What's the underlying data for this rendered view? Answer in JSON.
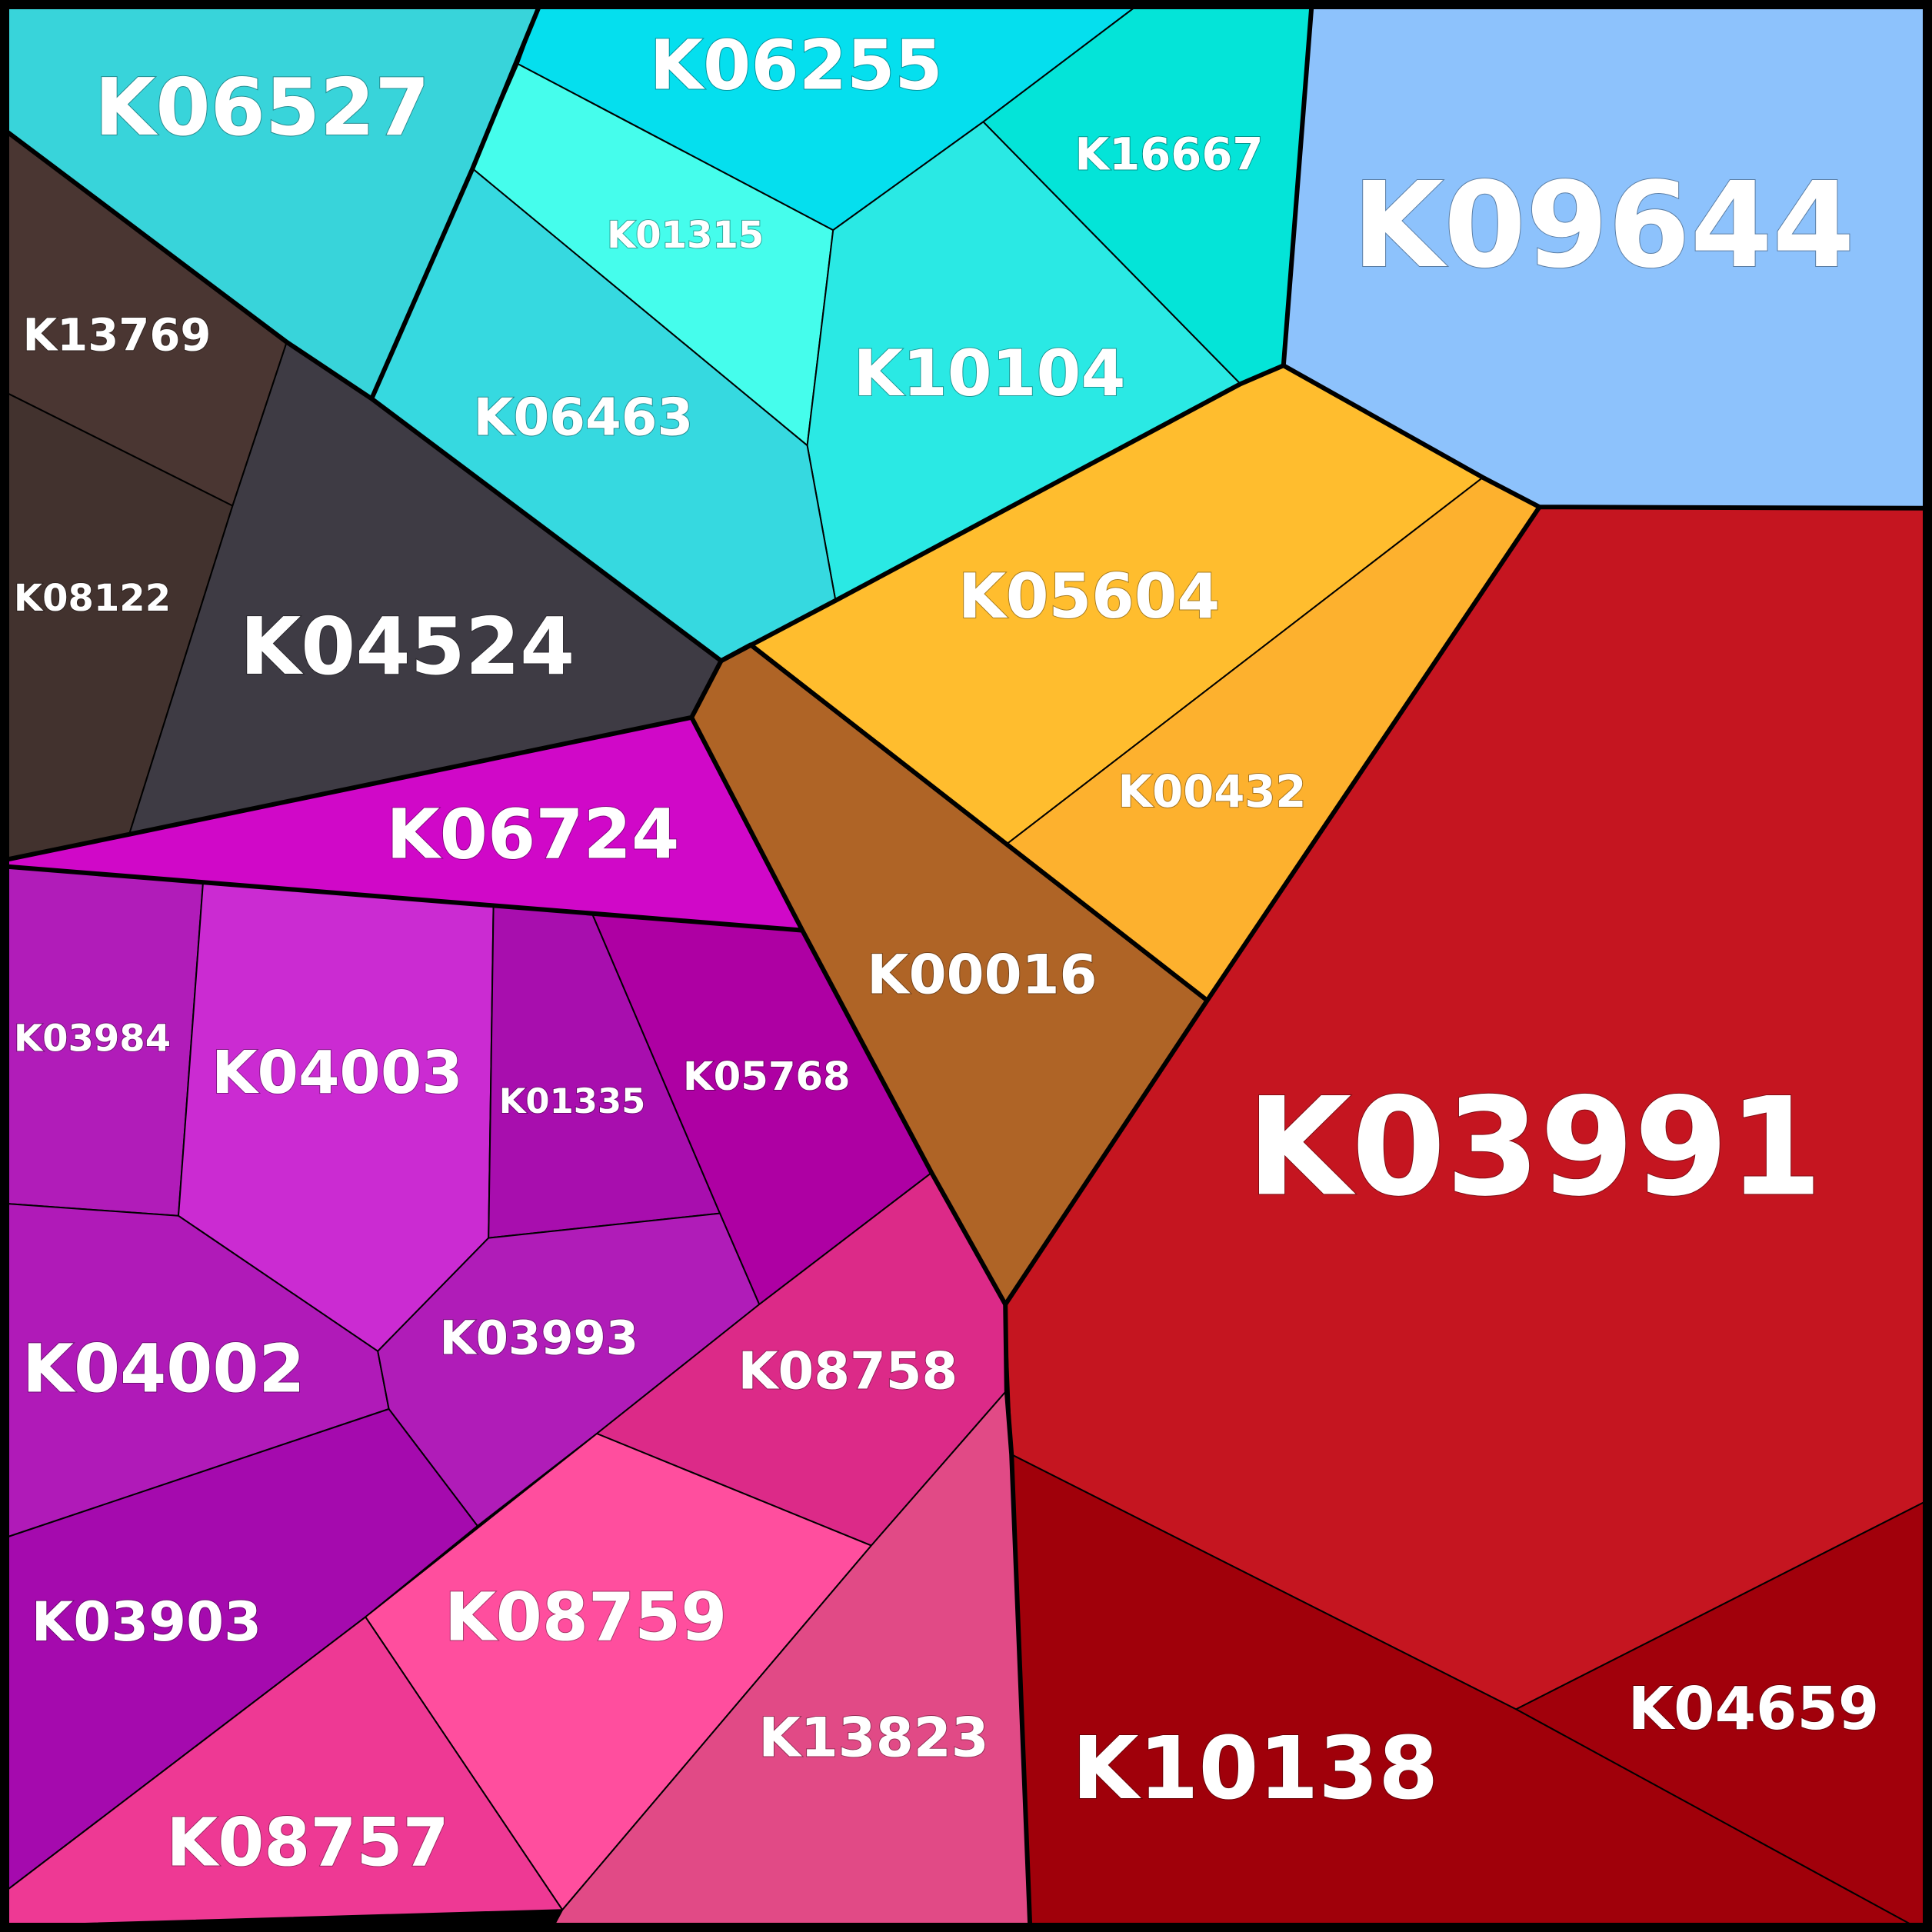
{
  "cells": [
    {
      "id": "K06527",
      "color": "#38d4da"
    },
    {
      "id": "K06255",
      "color": "#05dfee"
    },
    {
      "id": "K16667",
      "color": "#04e4d8"
    },
    {
      "id": "K09644",
      "color": "#8dc2fc"
    },
    {
      "id": "K01315",
      "color": "#45fdec"
    },
    {
      "id": "K10104",
      "color": "#2ae9e4"
    },
    {
      "id": "K06463",
      "color": "#36d9e0"
    },
    {
      "id": "K13769",
      "color": "#4a3632"
    },
    {
      "id": "K08122",
      "color": "#42322e"
    },
    {
      "id": "K04524",
      "color": "#3e3b44"
    },
    {
      "id": "K05604",
      "color": "#ffbd2e"
    },
    {
      "id": "K00432",
      "color": "#fdb12e"
    },
    {
      "id": "K00016",
      "color": "#af6426"
    },
    {
      "id": "K06724",
      "color": "#d008c8"
    },
    {
      "id": "K03984",
      "color": "#b11cb9"
    },
    {
      "id": "K04003",
      "color": "#cb2bd2"
    },
    {
      "id": "K01335",
      "color": "#a80eae"
    },
    {
      "id": "K05768",
      "color": "#ae00a3"
    },
    {
      "id": "K04002",
      "color": "#b01ab8"
    },
    {
      "id": "K03993",
      "color": "#b01cb8"
    },
    {
      "id": "K03903",
      "color": "#a50aae"
    },
    {
      "id": "K08758",
      "color": "#dc2a88"
    },
    {
      "id": "K08759",
      "color": "#ff4e9e"
    },
    {
      "id": "K08757",
      "color": "#ee3994"
    },
    {
      "id": "K13823",
      "color": "#e14a86"
    },
    {
      "id": "K03991",
      "color": "#c51520"
    },
    {
      "id": "K04659",
      "color": "#a1000b"
    },
    {
      "id": "K10138",
      "color": "#a0000a"
    }
  ]
}
